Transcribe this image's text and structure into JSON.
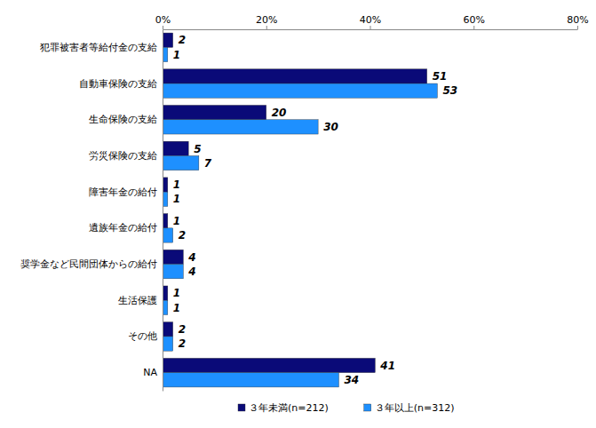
{
  "chart_data": {
    "type": "bar",
    "orientation": "horizontal",
    "categories": [
      "犯罪被害者等給付金の支給",
      "自動車保険の支給",
      "生命保険の支給",
      "労災保険の支給",
      "障害年金の給付",
      "遺族年金の給付",
      "奨学金など民間団体からの給付",
      "生活保護",
      "その他",
      "NA"
    ],
    "series": [
      {
        "name": "３年未満(n=212)",
        "color": "#0A0A78",
        "values": [
          2,
          51,
          20,
          5,
          1,
          1,
          4,
          1,
          2,
          41
        ]
      },
      {
        "name": "３年以上(n=312)",
        "color": "#1E90FF",
        "values": [
          1,
          53,
          30,
          7,
          1,
          2,
          4,
          1,
          2,
          34
        ]
      }
    ],
    "xlim": [
      0,
      80
    ],
    "xticks": [
      {
        "value": 0,
        "label": "0%"
      },
      {
        "value": 20,
        "label": "20%"
      },
      {
        "value": 40,
        "label": "40%"
      },
      {
        "value": 60,
        "label": "60%"
      },
      {
        "value": 80,
        "label": "80%"
      }
    ],
    "grid": false,
    "data_labels": true,
    "legend": "bottom"
  }
}
